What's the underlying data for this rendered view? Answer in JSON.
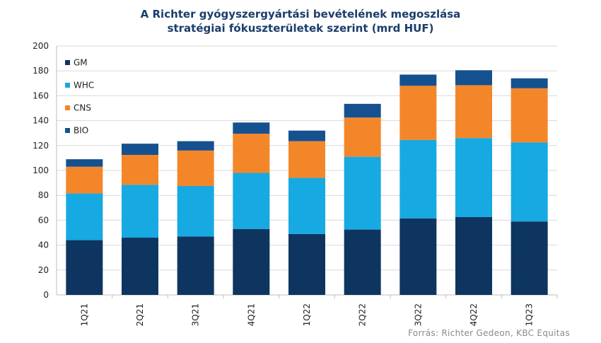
{
  "chart_data": {
    "type": "bar",
    "stacked": true,
    "title_line1": "A Richter gyógyszergyártási bevételének megoszlása",
    "title_line2": "stratégiai fókuszterületek szerint (mrd HUF)",
    "categories": [
      "1Q21",
      "2Q21",
      "3Q21",
      "4Q21",
      "1Q22",
      "2Q22",
      "3Q22",
      "4Q22",
      "1Q23"
    ],
    "series": [
      {
        "name": "GM",
        "color": "#0e3560",
        "values": [
          44,
          46,
          47,
          53,
          49,
          52.5,
          61.5,
          62.5,
          59
        ]
      },
      {
        "name": "WHC",
        "color": "#17a9e1",
        "values": [
          37.5,
          42.5,
          40.5,
          45,
          45,
          58.5,
          63,
          63.5,
          63.5
        ]
      },
      {
        "name": "CNS",
        "color": "#f4862a",
        "values": [
          21.5,
          24,
          28.5,
          31.5,
          29.5,
          31.5,
          43.5,
          42.5,
          43.5
        ]
      },
      {
        "name": "BIO",
        "color": "#15518f",
        "values": [
          6,
          9,
          7.5,
          9,
          8.5,
          11,
          9,
          12,
          8
        ]
      }
    ],
    "ylim": [
      0,
      200
    ],
    "yticks": [
      0,
      20,
      40,
      60,
      80,
      100,
      120,
      140,
      160,
      180,
      200
    ],
    "grid": true,
    "legend_position": "top-left",
    "source": "Forrás: Richter Gedeon, KBC Equitas"
  }
}
